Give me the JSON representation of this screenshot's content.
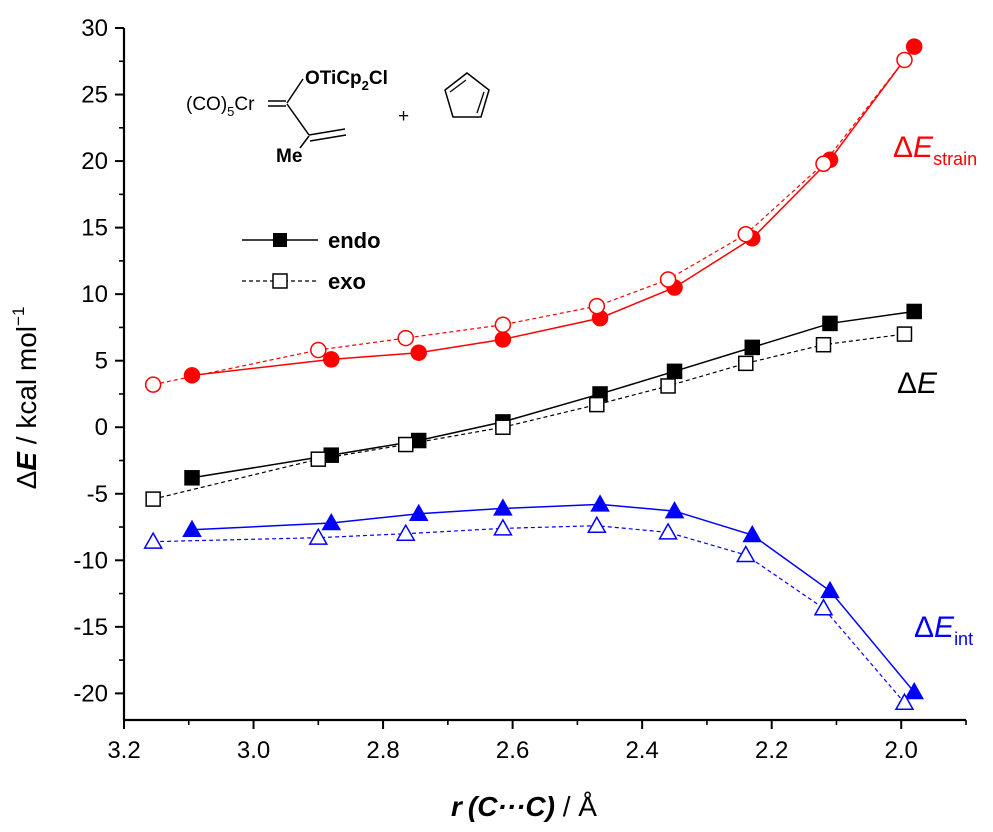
{
  "chart_data": {
    "type": "line",
    "xlim": [
      3.2,
      1.9
    ],
    "x_reversed": true,
    "ylim": [
      -22,
      30
    ],
    "x_ticks": [
      3.2,
      3.0,
      2.8,
      2.6,
      2.4,
      2.2,
      2.0
    ],
    "x_tick_labels": [
      "3.2",
      "3.0",
      "2.8",
      "2.6",
      "2.4",
      "2.2",
      "2.0"
    ],
    "y_ticks": [
      30,
      25,
      20,
      15,
      10,
      5,
      0,
      -5,
      -10,
      -15,
      -20
    ],
    "y_tick_labels": [
      "30",
      "25",
      "20",
      "15",
      "10",
      "5",
      "0",
      "-5",
      "-10",
      "-15",
      "-20"
    ],
    "xlabel": {
      "r": "r",
      "paren": "(C···C)",
      "unit": " / Å"
    },
    "ylabel": {
      "delta": "Δ",
      "E": "E",
      "unit": " / kcal mol",
      "sup": "−1"
    },
    "legend": [
      {
        "label": "endo",
        "style": "solid",
        "marker": "filled-square"
      },
      {
        "label": "exo",
        "style": "dashed",
        "marker": "open-square"
      }
    ],
    "legend_position": "top-left",
    "series_labels": {
      "strain": {
        "delta": "Δ",
        "E": "E",
        "sub": "strain",
        "color": "#ff0000"
      },
      "total": {
        "delta": "Δ",
        "E": "E",
        "sub": "",
        "color": "#000000"
      },
      "int": {
        "delta": "Δ",
        "E": "E",
        "sub": "int",
        "color": "#0000ff"
      }
    },
    "series": [
      {
        "name": "endo",
        "group": "strain",
        "color": "#ff0000",
        "marker": "circle",
        "filled": true,
        "dashed": false,
        "x": [
          3.095,
          2.88,
          2.745,
          2.615,
          2.465,
          2.35,
          2.23,
          2.11,
          1.98
        ],
        "y": [
          3.9,
          5.1,
          5.6,
          6.6,
          8.2,
          10.5,
          14.2,
          20.1,
          28.6
        ]
      },
      {
        "name": "exo",
        "group": "strain",
        "color": "#ff0000",
        "marker": "circle",
        "filled": false,
        "dashed": true,
        "x": [
          3.155,
          2.9,
          2.765,
          2.615,
          2.47,
          2.36,
          2.24,
          2.12,
          1.995
        ],
        "y": [
          3.2,
          5.8,
          6.7,
          7.7,
          9.1,
          11.1,
          14.5,
          19.8,
          27.6
        ]
      },
      {
        "name": "endo",
        "group": "total",
        "color": "#000000",
        "marker": "square",
        "filled": true,
        "dashed": false,
        "x": [
          3.095,
          2.88,
          2.745,
          2.615,
          2.465,
          2.35,
          2.23,
          2.11,
          1.98
        ],
        "y": [
          -3.8,
          -2.1,
          -1.0,
          0.4,
          2.5,
          4.2,
          6.0,
          7.8,
          8.7
        ]
      },
      {
        "name": "exo",
        "group": "total",
        "color": "#000000",
        "marker": "square",
        "filled": false,
        "dashed": true,
        "x": [
          3.155,
          2.9,
          2.765,
          2.615,
          2.47,
          2.36,
          2.24,
          2.12,
          1.995
        ],
        "y": [
          -5.4,
          -2.4,
          -1.3,
          0.0,
          1.7,
          3.1,
          4.8,
          6.2,
          7.0
        ]
      },
      {
        "name": "endo",
        "group": "int",
        "color": "#0000ff",
        "marker": "triangle",
        "filled": true,
        "dashed": false,
        "x": [
          3.095,
          2.88,
          2.745,
          2.615,
          2.465,
          2.35,
          2.23,
          2.11,
          1.98
        ],
        "y": [
          -7.7,
          -7.2,
          -6.5,
          -6.1,
          -5.8,
          -6.3,
          -8.1,
          -12.3,
          -19.9
        ]
      },
      {
        "name": "exo",
        "group": "int",
        "color": "#0000ff",
        "marker": "triangle",
        "filled": false,
        "dashed": true,
        "x": [
          3.155,
          2.9,
          2.765,
          2.615,
          2.47,
          2.36,
          2.24,
          2.12,
          1.995
        ],
        "y": [
          -8.6,
          -8.3,
          -8.0,
          -7.6,
          -7.4,
          -7.9,
          -9.6,
          -13.6,
          -20.7
        ]
      }
    ],
    "scheme": {
      "complex_prefix": "(CO)",
      "complex_sub": "5",
      "metal": "Cr",
      "otr_main": "OTiCp",
      "otr_sub": "2",
      "otr_tail": "Cl",
      "methyl": "Me",
      "plus": "+",
      "otr_color": "#ff0000",
      "methyl_color": "#0000ff"
    }
  }
}
